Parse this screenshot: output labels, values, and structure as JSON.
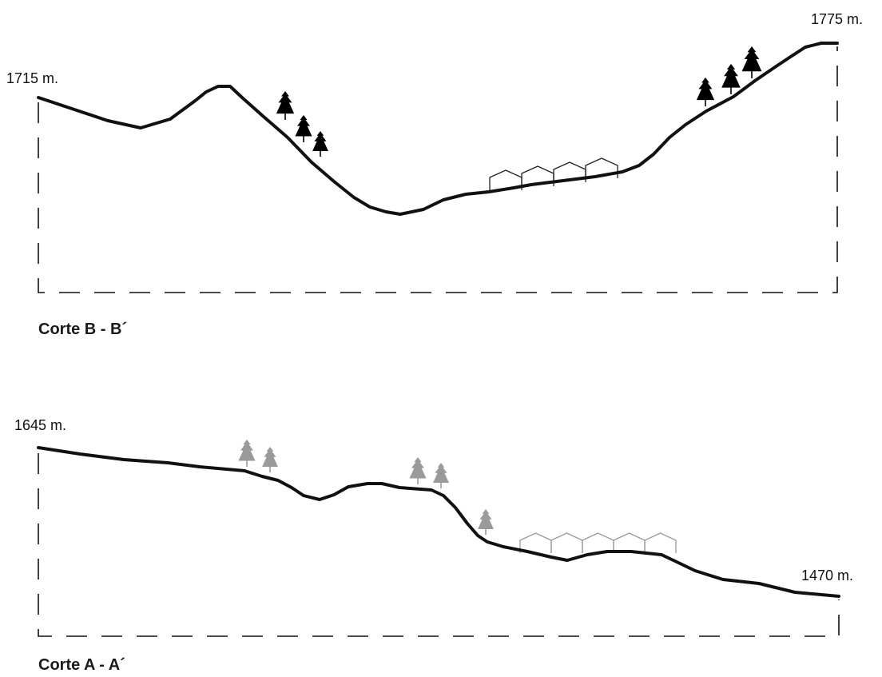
{
  "colors": {
    "terrain": "#111111",
    "tree_dark": "#000000",
    "tree_light": "#9a9a9a",
    "house_dark": "#222222",
    "house_light": "#9a9a9a",
    "focus_circle": "#d0202a"
  },
  "sections": [
    {
      "title": "Corte B - B´",
      "left_elevation": "1715 m.",
      "right_elevation": "1775 m.",
      "tree_style": "dark",
      "tree_icon": "conifer-tree-icon",
      "house_icon": "house-outline-icon"
    },
    {
      "title": "Corte A - A´",
      "left_elevation": "1645 m.",
      "right_elevation": "1470 m.",
      "tree_style": "light",
      "tree_icon": "conifer-tree-icon",
      "house_icon": "house-outline-icon"
    }
  ]
}
